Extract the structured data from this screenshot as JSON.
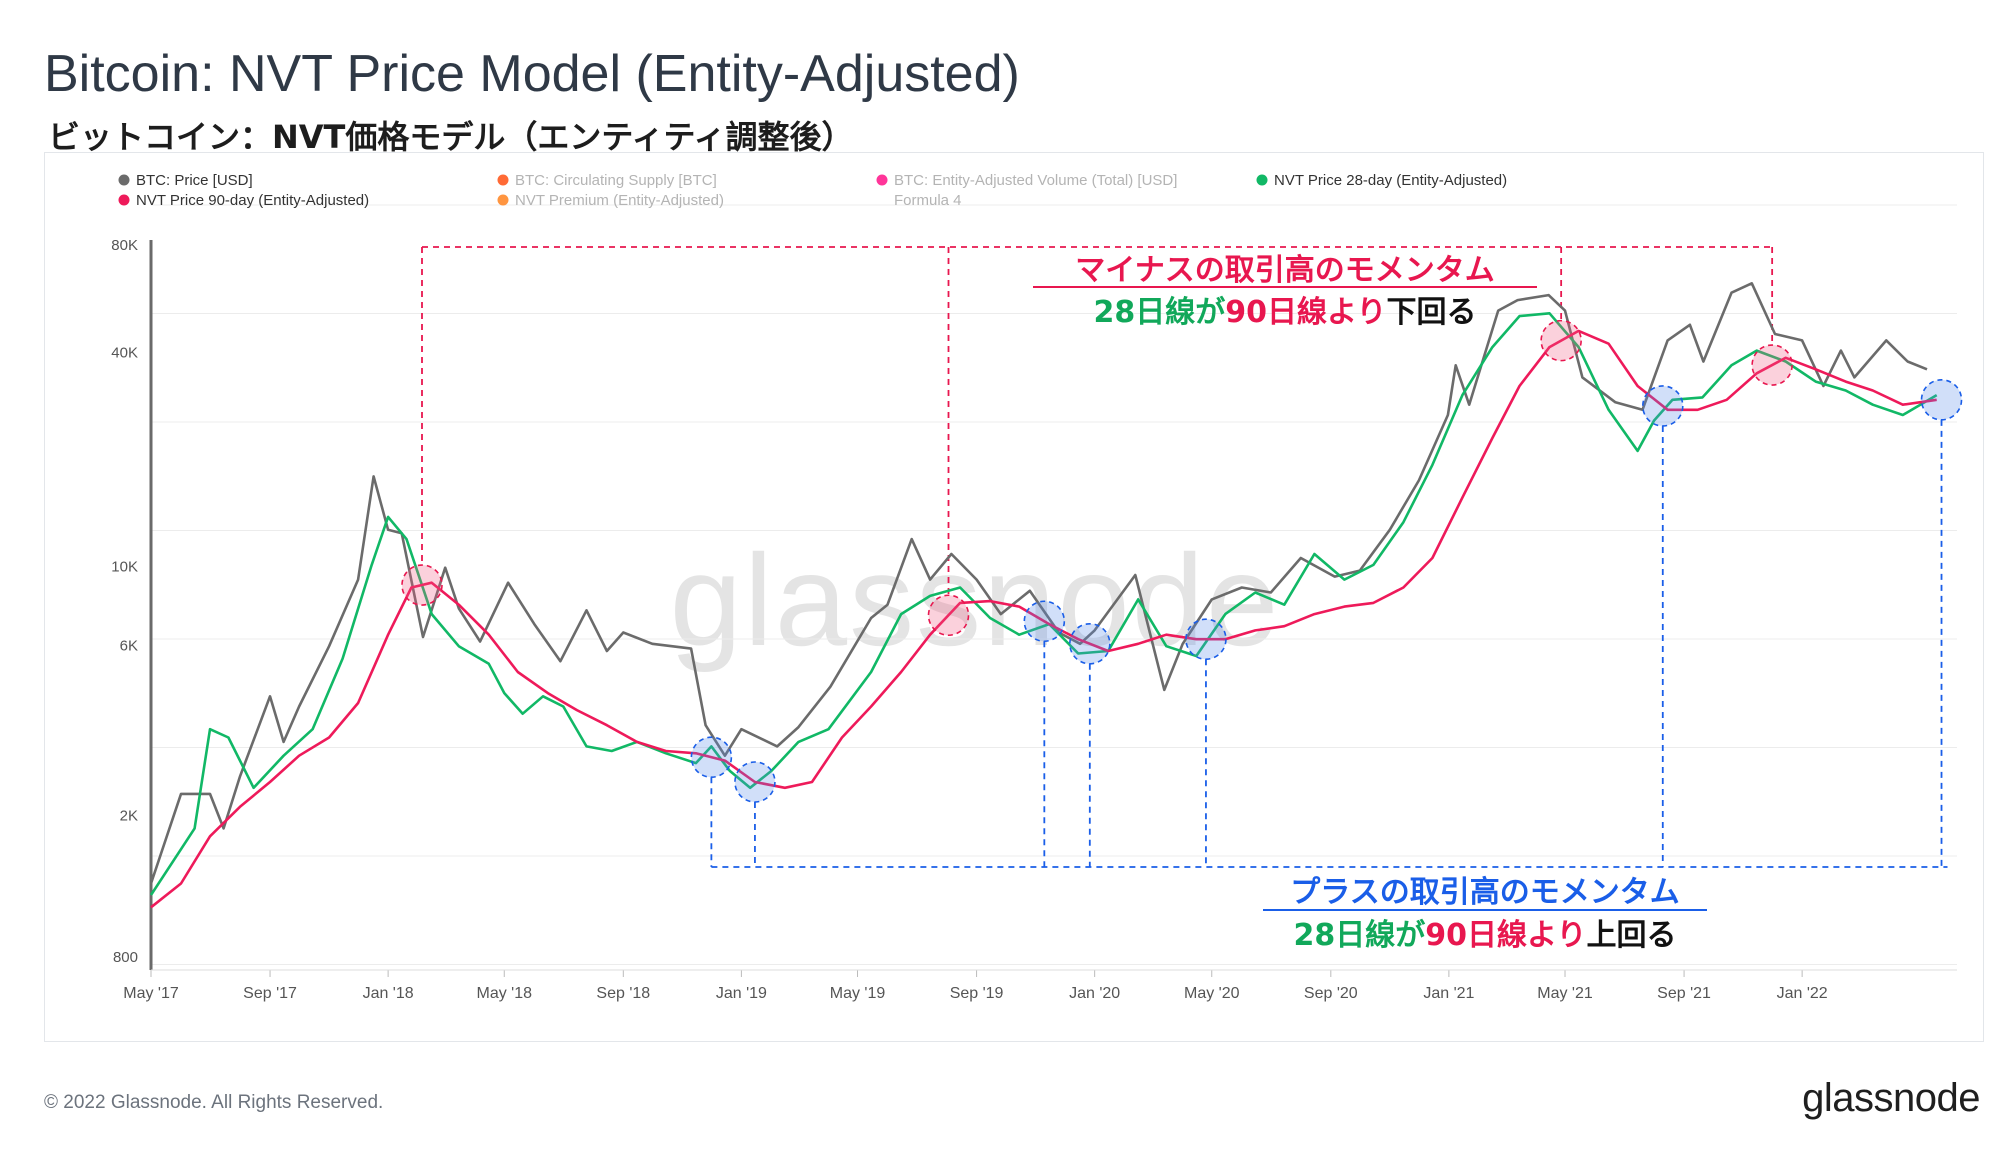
{
  "header": {
    "title": "Bitcoin: NVT Price Model (Entity-Adjusted)",
    "subtitle": "ビットコイン：NVT価格モデル（エンティティ調整後）"
  },
  "footer": {
    "copyright": "© 2022 Glassnode. All Rights Reserved.",
    "brand": "glassnode"
  },
  "watermark": "glassnode",
  "legend": [
    {
      "label": "BTC: Price [USD]",
      "color": "#6b6b6b",
      "muted": false
    },
    {
      "label": "BTC: Circulating Supply [BTC]",
      "color": "#ff5a1f",
      "muted": true
    },
    {
      "label": "BTC: Entity-Adjusted Volume (Total) [USD]",
      "color": "#ff1f8e",
      "muted": true
    },
    {
      "label": "NVT Price 28-day (Entity-Adjusted)",
      "color": "#11b866",
      "muted": false
    },
    {
      "label": "NVT Price 90-day (Entity-Adjusted)",
      "color": "#ee1a5a",
      "muted": false
    },
    {
      "label": "NVT Premium (Entity-Adjusted)",
      "color": "#ff8a2b",
      "muted": true
    },
    {
      "label": "Formula 4",
      "color": "",
      "muted": true
    }
  ],
  "annotations": {
    "negative": {
      "line1": "マイナスの取引高のモメンタム",
      "line2_a": "28日線が",
      "line2_b": "90日線より",
      "line2_c": "下回る",
      "color": "#e8174f"
    },
    "positive": {
      "line1": "プラスの取引高のモメンタム",
      "line2_a": "28日線が",
      "line2_b": "90日線より",
      "line2_c": "上回る",
      "color": "#1a5ee8"
    }
  },
  "chart_data": {
    "type": "line",
    "title": "Bitcoin: NVT Price Model (Entity-Adjusted)",
    "y_scale": "log",
    "ylim": [
      800,
      90000
    ],
    "y_ticks": [
      {
        "value": 800,
        "label": "800"
      },
      {
        "value": 2000,
        "label": "2K"
      },
      {
        "value": 6000,
        "label": "6K"
      },
      {
        "value": 10000,
        "label": "10K"
      },
      {
        "value": 40000,
        "label": "40K"
      },
      {
        "value": 80000,
        "label": "80K"
      }
    ],
    "x_range": [
      "2017-05-01",
      "2022-06-10"
    ],
    "x_ticks": [
      {
        "date": "2017-05-01",
        "label": "May '17"
      },
      {
        "date": "2017-09-01",
        "label": "Sep '17"
      },
      {
        "date": "2018-01-01",
        "label": "Jan '18"
      },
      {
        "date": "2018-05-01",
        "label": "May '18"
      },
      {
        "date": "2018-09-01",
        "label": "Sep '18"
      },
      {
        "date": "2019-01-01",
        "label": "Jan '19"
      },
      {
        "date": "2019-05-01",
        "label": "May '19"
      },
      {
        "date": "2019-09-01",
        "label": "Sep '19"
      },
      {
        "date": "2020-01-01",
        "label": "Jan '20"
      },
      {
        "date": "2020-05-01",
        "label": "May '20"
      },
      {
        "date": "2020-09-01",
        "label": "Sep '20"
      },
      {
        "date": "2021-01-01",
        "label": "Jan '21"
      },
      {
        "date": "2021-05-01",
        "label": "May '21"
      },
      {
        "date": "2021-09-01",
        "label": "Sep '21"
      },
      {
        "date": "2022-01-01",
        "label": "Jan '22"
      }
    ],
    "grid": true,
    "legend_position": "top",
    "series": [
      {
        "name": "BTC: Price [USD]",
        "color": "#6b6b6b",
        "points": [
          [
            "2017-05-01",
            1400
          ],
          [
            "2017-06-01",
            2500
          ],
          [
            "2017-07-01",
            2500
          ],
          [
            "2017-07-15",
            2000
          ],
          [
            "2017-08-01",
            2800
          ],
          [
            "2017-09-01",
            4700
          ],
          [
            "2017-09-15",
            3500
          ],
          [
            "2017-10-01",
            4400
          ],
          [
            "2017-11-01",
            6500
          ],
          [
            "2017-12-01",
            10000
          ],
          [
            "2017-12-17",
            19500
          ],
          [
            "2018-01-01",
            13800
          ],
          [
            "2018-01-15",
            13500
          ],
          [
            "2018-02-06",
            6900
          ],
          [
            "2018-03-01",
            10800
          ],
          [
            "2018-03-15",
            8300
          ],
          [
            "2018-04-06",
            6700
          ],
          [
            "2018-05-05",
            9800
          ],
          [
            "2018-06-01",
            7500
          ],
          [
            "2018-06-28",
            5900
          ],
          [
            "2018-07-25",
            8200
          ],
          [
            "2018-08-15",
            6300
          ],
          [
            "2018-09-01",
            7100
          ],
          [
            "2018-10-01",
            6600
          ],
          [
            "2018-11-10",
            6400
          ],
          [
            "2018-11-25",
            3900
          ],
          [
            "2018-12-15",
            3200
          ],
          [
            "2019-01-01",
            3800
          ],
          [
            "2019-02-07",
            3400
          ],
          [
            "2019-03-01",
            3850
          ],
          [
            "2019-04-03",
            5000
          ],
          [
            "2019-05-15",
            7800
          ],
          [
            "2019-06-01",
            8500
          ],
          [
            "2019-06-26",
            13000
          ],
          [
            "2019-07-15",
            10000
          ],
          [
            "2019-08-06",
            11800
          ],
          [
            "2019-09-01",
            10000
          ],
          [
            "2019-09-26",
            8000
          ],
          [
            "2019-10-26",
            9300
          ],
          [
            "2019-11-25",
            7100
          ],
          [
            "2019-12-17",
            6600
          ],
          [
            "2020-01-01",
            7200
          ],
          [
            "2020-02-12",
            10300
          ],
          [
            "2020-03-13",
            4900
          ],
          [
            "2020-04-01",
            6600
          ],
          [
            "2020-05-01",
            8800
          ],
          [
            "2020-06-01",
            9500
          ],
          [
            "2020-07-01",
            9200
          ],
          [
            "2020-08-01",
            11500
          ],
          [
            "2020-09-05",
            10200
          ],
          [
            "2020-10-01",
            10600
          ],
          [
            "2020-11-01",
            13800
          ],
          [
            "2020-12-01",
            19000
          ],
          [
            "2020-12-31",
            29000
          ],
          [
            "2021-01-08",
            40000
          ],
          [
            "2021-01-22",
            31000
          ],
          [
            "2021-02-21",
            57000
          ],
          [
            "2021-03-13",
            61000
          ],
          [
            "2021-04-14",
            63000
          ],
          [
            "2021-05-01",
            57000
          ],
          [
            "2021-05-19",
            37000
          ],
          [
            "2021-06-22",
            31500
          ],
          [
            "2021-07-20",
            30000
          ],
          [
            "2021-08-15",
            47000
          ],
          [
            "2021-09-07",
            52000
          ],
          [
            "2021-09-21",
            41000
          ],
          [
            "2021-10-20",
            64000
          ],
          [
            "2021-11-10",
            68000
          ],
          [
            "2021-12-04",
            49000
          ],
          [
            "2022-01-01",
            47000
          ],
          [
            "2022-01-23",
            35000
          ],
          [
            "2022-02-10",
            44000
          ],
          [
            "2022-02-24",
            37000
          ],
          [
            "2022-03-29",
            47000
          ],
          [
            "2022-04-20",
            41000
          ],
          [
            "2022-05-10",
            39000
          ]
        ]
      },
      {
        "name": "NVT Price 28-day (Entity-Adjusted)",
        "color": "#11b866",
        "points": [
          [
            "2017-05-01",
            1300
          ],
          [
            "2017-06-15",
            2000
          ],
          [
            "2017-07-01",
            3800
          ],
          [
            "2017-07-20",
            3600
          ],
          [
            "2017-08-15",
            2600
          ],
          [
            "2017-09-15",
            3200
          ],
          [
            "2017-10-15",
            3800
          ],
          [
            "2017-11-15",
            6000
          ],
          [
            "2017-12-15",
            11000
          ],
          [
            "2018-01-01",
            15000
          ],
          [
            "2018-01-20",
            13000
          ],
          [
            "2018-02-15",
            8000
          ],
          [
            "2018-03-15",
            6500
          ],
          [
            "2018-04-15",
            5800
          ],
          [
            "2018-05-01",
            4800
          ],
          [
            "2018-05-20",
            4200
          ],
          [
            "2018-06-10",
            4700
          ],
          [
            "2018-07-01",
            4400
          ],
          [
            "2018-07-25",
            3400
          ],
          [
            "2018-08-20",
            3300
          ],
          [
            "2018-09-15",
            3500
          ],
          [
            "2018-10-15",
            3250
          ],
          [
            "2018-11-15",
            3050
          ],
          [
            "2018-12-01",
            3400
          ],
          [
            "2018-12-20",
            2900
          ],
          [
            "2019-01-10",
            2600
          ],
          [
            "2019-02-01",
            2900
          ],
          [
            "2019-03-01",
            3500
          ],
          [
            "2019-04-01",
            3800
          ],
          [
            "2019-05-15",
            5500
          ],
          [
            "2019-06-15",
            8000
          ],
          [
            "2019-07-15",
            9000
          ],
          [
            "2019-08-15",
            9500
          ],
          [
            "2019-09-15",
            7800
          ],
          [
            "2019-10-15",
            7000
          ],
          [
            "2019-11-15",
            7500
          ],
          [
            "2019-12-15",
            6200
          ],
          [
            "2020-01-15",
            6300
          ],
          [
            "2020-02-15",
            8800
          ],
          [
            "2020-03-15",
            6500
          ],
          [
            "2020-04-15",
            6100
          ],
          [
            "2020-05-15",
            8000
          ],
          [
            "2020-06-15",
            9200
          ],
          [
            "2020-07-15",
            8500
          ],
          [
            "2020-08-15",
            11800
          ],
          [
            "2020-09-15",
            10000
          ],
          [
            "2020-10-15",
            11000
          ],
          [
            "2020-11-15",
            14500
          ],
          [
            "2020-12-15",
            21000
          ],
          [
            "2021-01-15",
            33000
          ],
          [
            "2021-02-15",
            45000
          ],
          [
            "2021-03-15",
            55000
          ],
          [
            "2021-04-15",
            56000
          ],
          [
            "2021-05-15",
            45000
          ],
          [
            "2021-06-15",
            30000
          ],
          [
            "2021-07-15",
            23000
          ],
          [
            "2021-08-01",
            28000
          ],
          [
            "2021-08-20",
            32000
          ],
          [
            "2021-09-20",
            32500
          ],
          [
            "2021-10-20",
            40000
          ],
          [
            "2021-11-15",
            44000
          ],
          [
            "2021-12-15",
            41000
          ],
          [
            "2022-01-15",
            36000
          ],
          [
            "2022-02-15",
            34000
          ],
          [
            "2022-03-15",
            31000
          ],
          [
            "2022-04-15",
            29000
          ],
          [
            "2022-05-20",
            33000
          ]
        ]
      },
      {
        "name": "NVT Price 90-day (Entity-Adjusted)",
        "color": "#ee1a5a",
        "points": [
          [
            "2017-05-01",
            1200
          ],
          [
            "2017-06-01",
            1400
          ],
          [
            "2017-07-01",
            1900
          ],
          [
            "2017-08-01",
            2300
          ],
          [
            "2017-09-01",
            2700
          ],
          [
            "2017-10-01",
            3200
          ],
          [
            "2017-11-01",
            3600
          ],
          [
            "2017-12-01",
            4500
          ],
          [
            "2018-01-01",
            7000
          ],
          [
            "2018-01-25",
            9500
          ],
          [
            "2018-02-15",
            9800
          ],
          [
            "2018-03-15",
            8500
          ],
          [
            "2018-04-15",
            7000
          ],
          [
            "2018-05-15",
            5500
          ],
          [
            "2018-06-15",
            4800
          ],
          [
            "2018-07-15",
            4300
          ],
          [
            "2018-08-15",
            3900
          ],
          [
            "2018-09-15",
            3500
          ],
          [
            "2018-10-15",
            3300
          ],
          [
            "2018-11-15",
            3250
          ],
          [
            "2018-12-15",
            3100
          ],
          [
            "2019-01-15",
            2700
          ],
          [
            "2019-02-15",
            2600
          ],
          [
            "2019-03-15",
            2700
          ],
          [
            "2019-04-15",
            3600
          ],
          [
            "2019-05-15",
            4400
          ],
          [
            "2019-06-15",
            5500
          ],
          [
            "2019-07-15",
            7000
          ],
          [
            "2019-08-15",
            8600
          ],
          [
            "2019-09-15",
            8700
          ],
          [
            "2019-10-15",
            8400
          ],
          [
            "2019-11-15",
            7500
          ],
          [
            "2019-12-15",
            6800
          ],
          [
            "2020-01-15",
            6300
          ],
          [
            "2020-02-15",
            6600
          ],
          [
            "2020-03-15",
            7000
          ],
          [
            "2020-04-15",
            6800
          ],
          [
            "2020-05-15",
            6800
          ],
          [
            "2020-06-15",
            7200
          ],
          [
            "2020-07-15",
            7400
          ],
          [
            "2020-08-15",
            8000
          ],
          [
            "2020-09-15",
            8400
          ],
          [
            "2020-10-15",
            8600
          ],
          [
            "2020-11-15",
            9500
          ],
          [
            "2020-12-15",
            11500
          ],
          [
            "2021-01-15",
            17000
          ],
          [
            "2021-02-15",
            25000
          ],
          [
            "2021-03-15",
            35000
          ],
          [
            "2021-04-15",
            45000
          ],
          [
            "2021-05-15",
            50000
          ],
          [
            "2021-06-15",
            46000
          ],
          [
            "2021-07-15",
            35000
          ],
          [
            "2021-08-15",
            30000
          ],
          [
            "2021-09-15",
            30000
          ],
          [
            "2021-10-15",
            32000
          ],
          [
            "2021-11-15",
            38000
          ],
          [
            "2021-12-15",
            42000
          ],
          [
            "2022-01-15",
            39000
          ],
          [
            "2022-02-15",
            36000
          ],
          [
            "2022-03-15",
            34000
          ],
          [
            "2022-04-15",
            31000
          ],
          [
            "2022-05-20",
            32000
          ]
        ]
      }
    ],
    "crossovers": {
      "negative": [
        "2018-02-05",
        "2019-08-03",
        "2021-04-27",
        "2021-12-01"
      ],
      "positive": [
        "2018-12-01",
        "2019-01-15",
        "2019-11-10",
        "2019-12-27",
        "2020-04-25",
        "2021-08-10",
        "2022-05-25"
      ]
    }
  }
}
